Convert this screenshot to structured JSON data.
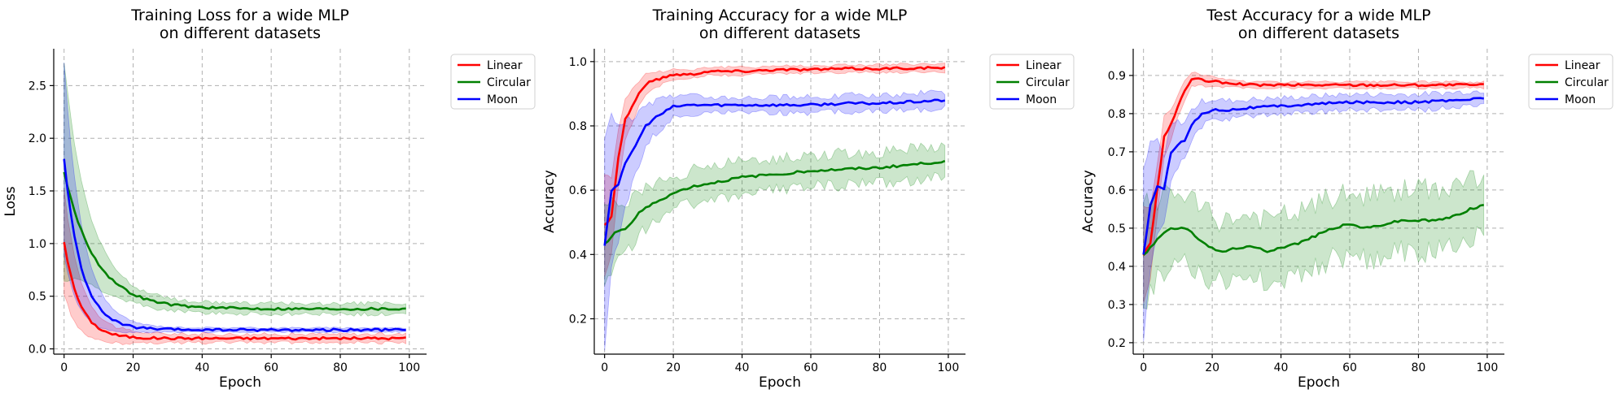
{
  "chart_data": [
    {
      "type": "line",
      "title": [
        "Training Loss for a wide MLP",
        "on different datasets"
      ],
      "xlabel": "Epoch",
      "ylabel": "Loss",
      "xlim": [
        -3,
        105
      ],
      "ylim": [
        -0.05,
        2.85
      ],
      "xticks": [
        0,
        20,
        40,
        60,
        80,
        100
      ],
      "yticks": [
        0.0,
        0.5,
        1.0,
        1.5,
        2.0,
        2.5
      ],
      "tick_decimals": 1,
      "grid": true,
      "legend": "outside-upper-right",
      "series": [
        {
          "name": "Linear",
          "color": "#ff0000",
          "kind": "exp",
          "start": 1.02,
          "end": 0.1,
          "tau": 4.5,
          "band": 0.04,
          "band_start": 0.45
        },
        {
          "name": "Circular",
          "color": "#008000",
          "kind": "exp",
          "start": 1.68,
          "end": 0.38,
          "tau": 9,
          "band": 0.05,
          "band_start": 1.0
        },
        {
          "name": "Moon",
          "color": "#0000ff",
          "kind": "exp",
          "start": 1.8,
          "end": 0.18,
          "tau": 5,
          "band": 0.02,
          "band_start": 0.9
        }
      ]
    },
    {
      "type": "line",
      "title": [
        "Training Accuracy for a wide MLP",
        "on different datasets"
      ],
      "xlabel": "Epoch",
      "ylabel": "Accuracy",
      "xlim": [
        -3,
        105
      ],
      "ylim": [
        0.09,
        1.04
      ],
      "xticks": [
        0,
        20,
        40,
        60,
        80,
        100
      ],
      "yticks": [
        0.2,
        0.4,
        0.6,
        0.8,
        1.0
      ],
      "tick_decimals": 1,
      "grid": true,
      "legend": "outside-upper-right",
      "series": [
        {
          "name": "Linear",
          "color": "#ff0000",
          "kind": "pts",
          "band": 0.012,
          "band_start": 0.15,
          "points": [
            [
              0,
              0.49
            ],
            [
              2,
              0.52
            ],
            [
              4,
              0.7
            ],
            [
              6,
              0.82
            ],
            [
              8,
              0.86
            ],
            [
              10,
              0.9
            ],
            [
              12,
              0.93
            ],
            [
              14,
              0.94
            ],
            [
              17,
              0.95
            ],
            [
              20,
              0.96
            ],
            [
              25,
              0.96
            ],
            [
              30,
              0.97
            ],
            [
              40,
              0.97
            ],
            [
              50,
              0.975
            ],
            [
              60,
              0.975
            ],
            [
              70,
              0.978
            ],
            [
              80,
              0.978
            ],
            [
              90,
              0.98
            ],
            [
              99,
              0.98
            ]
          ]
        },
        {
          "name": "Circular",
          "color": "#008000",
          "kind": "pts",
          "band": 0.05,
          "band_start": 0.08,
          "points": [
            [
              0,
              0.43
            ],
            [
              3,
              0.47
            ],
            [
              6,
              0.48
            ],
            [
              8,
              0.5
            ],
            [
              10,
              0.53
            ],
            [
              13,
              0.55
            ],
            [
              16,
              0.57
            ],
            [
              20,
              0.59
            ],
            [
              25,
              0.61
            ],
            [
              30,
              0.62
            ],
            [
              35,
              0.63
            ],
            [
              40,
              0.64
            ],
            [
              45,
              0.645
            ],
            [
              50,
              0.65
            ],
            [
              55,
              0.655
            ],
            [
              60,
              0.66
            ],
            [
              70,
              0.665
            ],
            [
              80,
              0.67
            ],
            [
              90,
              0.68
            ],
            [
              99,
              0.69
            ]
          ]
        },
        {
          "name": "Moon",
          "color": "#0000ff",
          "kind": "pts",
          "band": 0.025,
          "band_start": 0.3,
          "points": [
            [
              0,
              0.43
            ],
            [
              2,
              0.6
            ],
            [
              4,
              0.62
            ],
            [
              6,
              0.68
            ],
            [
              8,
              0.72
            ],
            [
              10,
              0.76
            ],
            [
              12,
              0.8
            ],
            [
              14,
              0.82
            ],
            [
              17,
              0.84
            ],
            [
              20,
              0.86
            ],
            [
              25,
              0.865
            ],
            [
              30,
              0.865
            ],
            [
              40,
              0.865
            ],
            [
              50,
              0.865
            ],
            [
              60,
              0.865
            ],
            [
              70,
              0.87
            ],
            [
              80,
              0.87
            ],
            [
              90,
              0.875
            ],
            [
              99,
              0.88
            ]
          ]
        }
      ]
    },
    {
      "type": "line",
      "title": [
        "Test Accuracy for a wide MLP",
        "on different datasets"
      ],
      "xlabel": "Epoch",
      "ylabel": "Accuracy",
      "xlim": [
        -3,
        105
      ],
      "ylim": [
        0.17,
        0.97
      ],
      "xticks": [
        0,
        20,
        40,
        60,
        80,
        100
      ],
      "yticks": [
        0.2,
        0.3,
        0.4,
        0.5,
        0.6,
        0.7,
        0.8,
        0.9
      ],
      "tick_decimals": 1,
      "grid": true,
      "legend": "outside-upper-right",
      "series": [
        {
          "name": "Linear",
          "color": "#ff0000",
          "kind": "pts",
          "band": 0.008,
          "band_start": 0.12,
          "points": [
            [
              0,
              0.43
            ],
            [
              2,
              0.46
            ],
            [
              4,
              0.6
            ],
            [
              6,
              0.74
            ],
            [
              8,
              0.77
            ],
            [
              10,
              0.82
            ],
            [
              12,
              0.86
            ],
            [
              14,
              0.89
            ],
            [
              16,
              0.89
            ],
            [
              18,
              0.885
            ],
            [
              20,
              0.885
            ],
            [
              23,
              0.88
            ],
            [
              26,
              0.88
            ],
            [
              30,
              0.875
            ],
            [
              40,
              0.875
            ],
            [
              50,
              0.875
            ],
            [
              60,
              0.875
            ],
            [
              70,
              0.875
            ],
            [
              80,
              0.875
            ],
            [
              90,
              0.875
            ],
            [
              99,
              0.875
            ]
          ]
        },
        {
          "name": "Circular",
          "color": "#008000",
          "kind": "pts",
          "band": 0.08,
          "band_start": 0.05,
          "points": [
            [
              0,
              0.43
            ],
            [
              3,
              0.46
            ],
            [
              6,
              0.49
            ],
            [
              9,
              0.5
            ],
            [
              12,
              0.5
            ],
            [
              15,
              0.48
            ],
            [
              18,
              0.46
            ],
            [
              21,
              0.44
            ],
            [
              24,
              0.44
            ],
            [
              28,
              0.45
            ],
            [
              32,
              0.45
            ],
            [
              36,
              0.44
            ],
            [
              40,
              0.45
            ],
            [
              45,
              0.46
            ],
            [
              50,
              0.48
            ],
            [
              55,
              0.5
            ],
            [
              60,
              0.51
            ],
            [
              65,
              0.5
            ],
            [
              70,
              0.51
            ],
            [
              75,
              0.52
            ],
            [
              80,
              0.52
            ],
            [
              85,
              0.52
            ],
            [
              90,
              0.53
            ],
            [
              95,
              0.55
            ],
            [
              99,
              0.56
            ]
          ]
        },
        {
          "name": "Moon",
          "color": "#0000ff",
          "kind": "pts",
          "band": 0.02,
          "band_start": 0.2,
          "points": [
            [
              0,
              0.43
            ],
            [
              2,
              0.56
            ],
            [
              4,
              0.61
            ],
            [
              6,
              0.6
            ],
            [
              8,
              0.7
            ],
            [
              10,
              0.72
            ],
            [
              12,
              0.73
            ],
            [
              14,
              0.77
            ],
            [
              17,
              0.8
            ],
            [
              20,
              0.81
            ],
            [
              25,
              0.81
            ],
            [
              30,
              0.815
            ],
            [
              40,
              0.82
            ],
            [
              50,
              0.825
            ],
            [
              60,
              0.83
            ],
            [
              70,
              0.83
            ],
            [
              80,
              0.83
            ],
            [
              90,
              0.835
            ],
            [
              99,
              0.84
            ]
          ]
        }
      ]
    }
  ]
}
